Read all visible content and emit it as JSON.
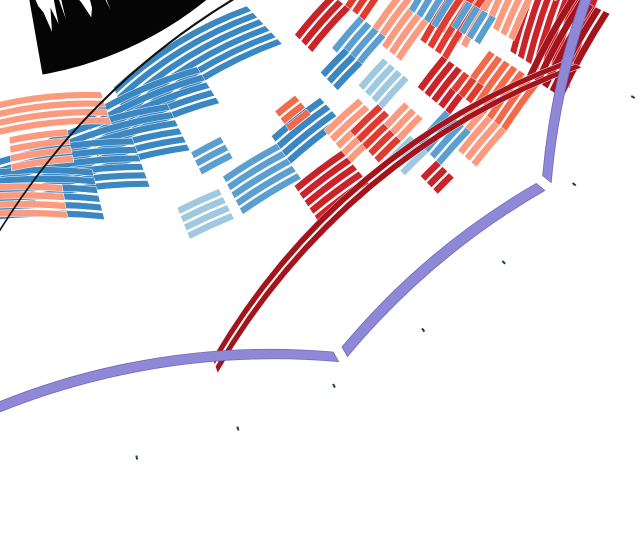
{
  "figure": {
    "kind": "circular-genome-track-view",
    "track_count": 34,
    "colors": {
      "background": "#ffffff",
      "ring_line": "#cfcfcf",
      "histogram": "#050505",
      "outer_track": "#8e88d6",
      "outer_track_edge": "#6f68c2",
      "tick_mark": "#1d4a1d",
      "dark_band": "#a3141c",
      "black_band": "#111111",
      "palette": [
        "#3b87c2",
        "#5a9fd0",
        "#9ec9e0",
        "#fb9a7e",
        "#f16a4c",
        "#e03b30",
        "#c8242a",
        "#a3141c"
      ]
    }
  }
}
